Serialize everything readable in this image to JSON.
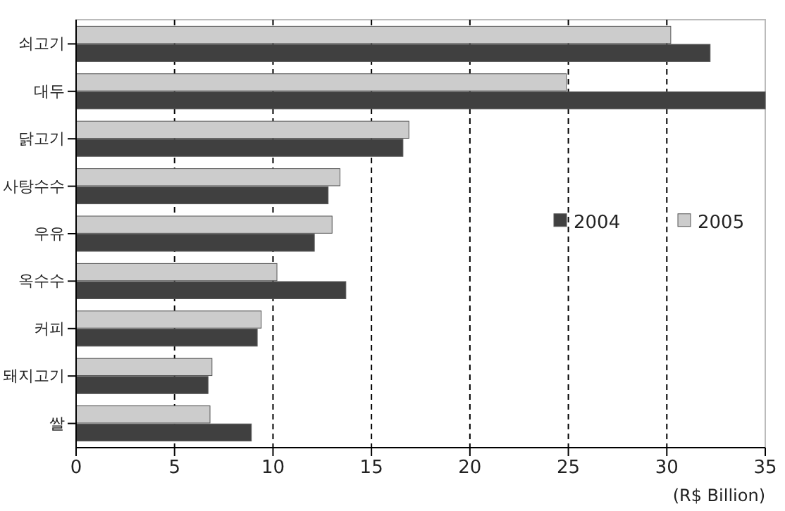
{
  "chart_data": {
    "type": "bar",
    "orientation": "horizontal",
    "categories": [
      "쇠고기",
      "대두",
      "닭고기",
      "사탕수수",
      "우유",
      "옥수수",
      "커피",
      "돼지고기",
      "쌀"
    ],
    "series": [
      {
        "name": "2004",
        "color": "#404040",
        "values": [
          32.2,
          35,
          16.6,
          12.8,
          12.1,
          13.7,
          9.2,
          6.7,
          8.9
        ]
      },
      {
        "name": "2005",
        "color": "#cccccc",
        "values": [
          30.2,
          24.9,
          16.9,
          13.4,
          13.0,
          10.2,
          9.4,
          6.9,
          6.8
        ]
      }
    ],
    "xlabel": "(R$ Billion)",
    "xlim": [
      0,
      35
    ],
    "xticks": [
      0,
      5,
      10,
      15,
      20,
      25,
      30,
      35
    ],
    "grid": "x",
    "legend": "right"
  }
}
